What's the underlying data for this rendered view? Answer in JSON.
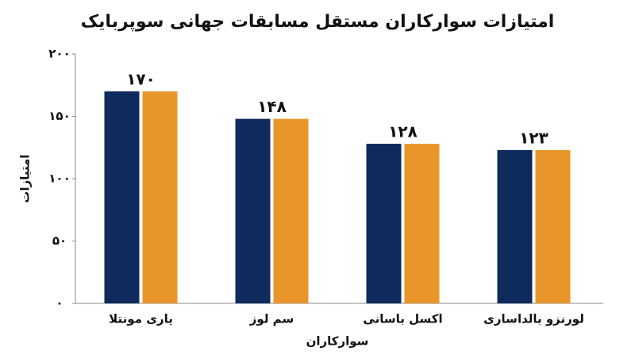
{
  "chart_data": {
    "type": "bar",
    "title": "امتیازات سوارکاران مستقل مسابقات جهانی سوپربایک",
    "x_label": "سوارکاران",
    "y_label": "امتیازات",
    "categories": [
      "یاری مونتلا",
      "سم لوز",
      "اکسل باسانی",
      "لورنزو بالداساری"
    ],
    "series": [
      {
        "color": "#0f2a5c",
        "values": [
          170,
          148,
          128,
          123
        ],
        "value_labels": [
          "۱۷۰",
          "۱۴۸",
          "۱۲۸",
          "۱۲۳"
        ]
      },
      {
        "color": "#e8962a",
        "values": [
          170,
          148,
          128,
          123
        ]
      }
    ],
    "ylim": [
      0,
      200
    ],
    "yticks": [
      {
        "value": 0,
        "label": "۰"
      },
      {
        "value": 50,
        "label": "۵۰"
      },
      {
        "value": 100,
        "label": "۱۰۰"
      },
      {
        "value": 150,
        "label": "۱۵۰"
      },
      {
        "value": 200,
        "label": "۲۰۰"
      }
    ],
    "grid": false
  }
}
